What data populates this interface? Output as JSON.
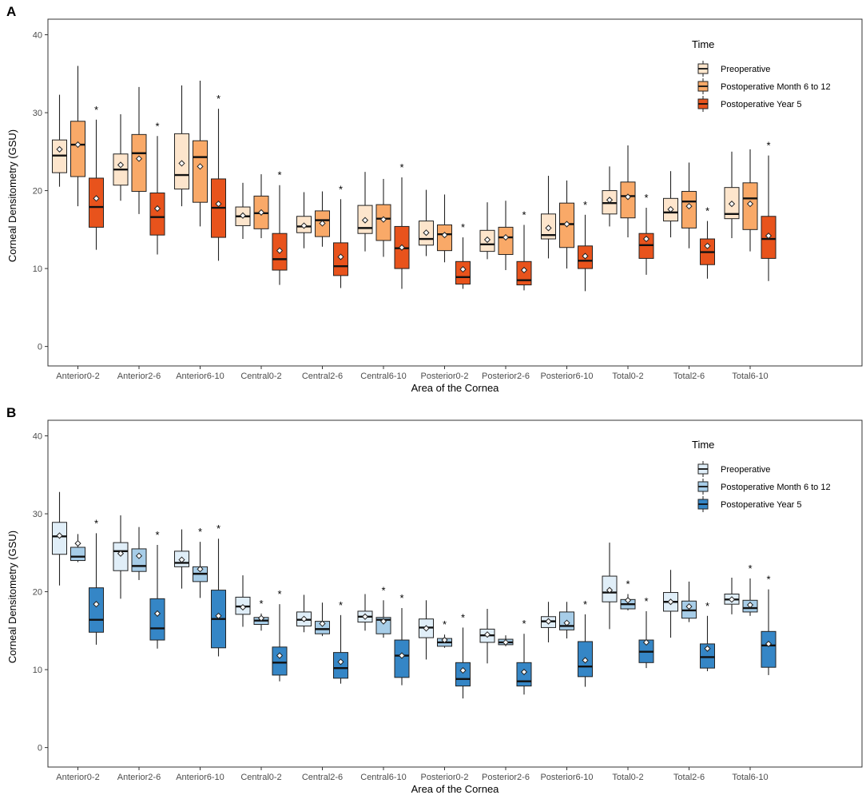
{
  "chart_data": [
    {
      "type": "boxplot",
      "panel_label": "A",
      "xlabel": "Area of the Cornea",
      "ylabel": "Corneal Densitometry (GSU)",
      "ylim": [
        -2.5,
        42
      ],
      "yticks": [
        0,
        10,
        20,
        30,
        40
      ],
      "grid": false,
      "categories": [
        "Anterior0-2",
        "Anterior2-6",
        "Anterior6-10",
        "Central0-2",
        "Central2-6",
        "Central6-10",
        "Posterior0-2",
        "Posterior2-6",
        "Posterior6-10",
        "Total0-2",
        "Total2-6",
        "Total6-10"
      ],
      "legend": {
        "title": "Time",
        "position": "top-right"
      },
      "significance_marker": "*",
      "series": [
        {
          "name": "Preoperative",
          "color": "#fde5cc",
          "boxes": [
            {
              "min": 20.5,
              "q1": 22.3,
              "median": 24.5,
              "q3": 26.5,
              "max": 32.3,
              "mean": 25.3
            },
            {
              "min": 18.7,
              "q1": 20.7,
              "median": 22.7,
              "q3": 24.7,
              "max": 29.8,
              "mean": 23.3
            },
            {
              "min": 18.0,
              "q1": 20.2,
              "median": 22.0,
              "q3": 27.3,
              "max": 33.5,
              "mean": 23.5
            },
            {
              "min": 13.8,
              "q1": 15.5,
              "median": 16.7,
              "q3": 17.9,
              "max": 21.0,
              "mean": 16.8
            },
            {
              "min": 12.6,
              "q1": 14.6,
              "median": 15.4,
              "q3": 16.7,
              "max": 19.8,
              "mean": 15.5
            },
            {
              "min": 12.2,
              "q1": 14.5,
              "median": 15.2,
              "q3": 18.1,
              "max": 22.4,
              "mean": 16.2
            },
            {
              "min": 11.6,
              "q1": 13.0,
              "median": 13.8,
              "q3": 16.1,
              "max": 20.1,
              "mean": 14.6
            },
            {
              "min": 11.2,
              "q1": 12.2,
              "median": 13.1,
              "q3": 14.9,
              "max": 18.5,
              "mean": 13.7
            },
            {
              "min": 11.3,
              "q1": 13.8,
              "median": 14.3,
              "q3": 17.0,
              "max": 21.9,
              "mean": 15.2
            },
            {
              "min": 15.4,
              "q1": 17.0,
              "median": 18.4,
              "q3": 20.0,
              "max": 23.1,
              "mean": 18.8
            },
            {
              "min": 14.0,
              "q1": 16.1,
              "median": 17.2,
              "q3": 19.0,
              "max": 22.5,
              "mean": 17.6
            },
            {
              "min": 13.9,
              "q1": 16.4,
              "median": 17.0,
              "q3": 20.4,
              "max": 25.0,
              "mean": 18.3
            }
          ]
        },
        {
          "name": "Postoperative Month 6 to 12",
          "color": "#f9a968",
          "boxes": [
            {
              "min": 18.0,
              "q1": 21.8,
              "median": 25.9,
              "q3": 28.9,
              "max": 36.0,
              "mean": 25.9
            },
            {
              "min": 17.0,
              "q1": 19.9,
              "median": 24.8,
              "q3": 27.2,
              "max": 33.3,
              "mean": 24.1
            },
            {
              "min": 15.4,
              "q1": 18.5,
              "median": 24.3,
              "q3": 26.4,
              "max": 34.1,
              "mean": 23.1
            },
            {
              "min": 13.9,
              "q1": 15.1,
              "median": 17.1,
              "q3": 19.3,
              "max": 22.1,
              "mean": 17.2
            },
            {
              "min": 12.8,
              "q1": 14.1,
              "median": 16.2,
              "q3": 17.4,
              "max": 19.9,
              "mean": 15.8
            },
            {
              "min": 11.5,
              "q1": 13.6,
              "median": 16.4,
              "q3": 18.2,
              "max": 21.5,
              "mean": 16.3
            },
            {
              "min": 10.8,
              "q1": 12.3,
              "median": 14.4,
              "q3": 15.6,
              "max": 19.5,
              "mean": 14.3
            },
            {
              "min": 9.8,
              "q1": 11.8,
              "median": 14.0,
              "q3": 15.3,
              "max": 18.7,
              "mean": 14.0
            },
            {
              "min": 10.0,
              "q1": 12.7,
              "median": 15.7,
              "q3": 18.4,
              "max": 21.3,
              "mean": 15.7
            },
            {
              "min": 14.0,
              "q1": 16.5,
              "median": 19.3,
              "q3": 21.1,
              "max": 25.8,
              "mean": 19.2
            },
            {
              "min": 12.6,
              "q1": 15.2,
              "median": 18.6,
              "q3": 19.9,
              "max": 23.6,
              "mean": 18.0
            },
            {
              "min": 12.2,
              "q1": 15.0,
              "median": 19.0,
              "q3": 21.0,
              "max": 25.3,
              "mean": 18.3
            }
          ]
        },
        {
          "name": "Postoperative Year 5",
          "color": "#e8531c",
          "boxes": [
            {
              "min": 12.4,
              "q1": 15.3,
              "median": 17.9,
              "q3": 21.6,
              "max": 29.1,
              "mean": 19.0
            },
            {
              "min": 11.8,
              "q1": 14.3,
              "median": 16.6,
              "q3": 19.7,
              "max": 27.0,
              "mean": 17.7
            },
            {
              "min": 11.0,
              "q1": 14.0,
              "median": 17.8,
              "q3": 21.5,
              "max": 30.5,
              "mean": 18.3
            },
            {
              "min": 7.9,
              "q1": 9.8,
              "median": 11.2,
              "q3": 14.5,
              "max": 20.7,
              "mean": 12.3
            },
            {
              "min": 7.5,
              "q1": 9.1,
              "median": 10.3,
              "q3": 13.3,
              "max": 18.9,
              "mean": 11.5
            },
            {
              "min": 7.4,
              "q1": 10.0,
              "median": 12.6,
              "q3": 15.4,
              "max": 21.7,
              "mean": 12.7
            },
            {
              "min": 7.4,
              "q1": 8.0,
              "median": 8.9,
              "q3": 10.9,
              "max": 14.0,
              "mean": 9.9
            },
            {
              "min": 7.2,
              "q1": 7.9,
              "median": 8.5,
              "q3": 10.9,
              "max": 15.6,
              "mean": 9.8
            },
            {
              "min": 7.1,
              "q1": 10.0,
              "median": 11.0,
              "q3": 12.9,
              "max": 16.9,
              "mean": 11.6
            },
            {
              "min": 9.2,
              "q1": 11.3,
              "median": 13.0,
              "q3": 14.5,
              "max": 17.8,
              "mean": 13.8
            },
            {
              "min": 8.7,
              "q1": 10.5,
              "median": 12.1,
              "q3": 13.8,
              "max": 16.1,
              "mean": 12.9
            },
            {
              "min": 8.4,
              "q1": 11.3,
              "median": 13.8,
              "q3": 16.7,
              "max": 24.5,
              "mean": 14.2
            }
          ]
        }
      ],
      "significance": [
        [
          false,
          false,
          true
        ],
        [
          false,
          false,
          true
        ],
        [
          false,
          false,
          true
        ],
        [
          false,
          false,
          true
        ],
        [
          false,
          false,
          true
        ],
        [
          false,
          false,
          true
        ],
        [
          false,
          false,
          true
        ],
        [
          false,
          false,
          true
        ],
        [
          false,
          false,
          true
        ],
        [
          false,
          false,
          true
        ],
        [
          false,
          false,
          true
        ],
        [
          false,
          false,
          true
        ]
      ]
    },
    {
      "type": "boxplot",
      "panel_label": "B",
      "xlabel": "Area of the Cornea",
      "ylabel": "Corneal Densitometry (GSU)",
      "ylim": [
        -2.5,
        42
      ],
      "yticks": [
        0,
        10,
        20,
        30,
        40
      ],
      "grid": false,
      "categories": [
        "Anterior0-2",
        "Anterior2-6",
        "Anterior6-10",
        "Central0-2",
        "Central2-6",
        "Central6-10",
        "Posterior0-2",
        "Posterior2-6",
        "Posterior6-10",
        "Total0-2",
        "Total2-6",
        "Total6-10"
      ],
      "legend": {
        "title": "Time",
        "position": "top-right"
      },
      "significance_marker": "*",
      "series": [
        {
          "name": "Preoperative",
          "color": "#e0eef8",
          "boxes": [
            {
              "min": 20.8,
              "q1": 24.8,
              "median": 27.1,
              "q3": 28.9,
              "max": 32.8,
              "mean": 27.2
            },
            {
              "min": 19.1,
              "q1": 22.7,
              "median": 25.2,
              "q3": 26.3,
              "max": 29.8,
              "mean": 24.9
            },
            {
              "min": 20.4,
              "q1": 23.2,
              "median": 23.7,
              "q3": 25.2,
              "max": 28.0,
              "mean": 24.1
            },
            {
              "min": 15.5,
              "q1": 17.1,
              "median": 18.1,
              "q3": 19.3,
              "max": 22.1,
              "mean": 18.0
            },
            {
              "min": 14.8,
              "q1": 15.6,
              "median": 16.4,
              "q3": 17.4,
              "max": 19.6,
              "mean": 16.5
            },
            {
              "min": 15.0,
              "q1": 16.1,
              "median": 16.8,
              "q3": 17.5,
              "max": 19.7,
              "mean": 16.8
            },
            {
              "min": 11.3,
              "q1": 14.1,
              "median": 15.4,
              "q3": 16.5,
              "max": 18.9,
              "mean": 15.3
            },
            {
              "min": 10.8,
              "q1": 13.5,
              "median": 14.4,
              "q3": 15.2,
              "max": 17.8,
              "mean": 14.5
            },
            {
              "min": 13.5,
              "q1": 15.4,
              "median": 16.2,
              "q3": 16.8,
              "max": 18.7,
              "mean": 16.2
            },
            {
              "min": 15.2,
              "q1": 18.7,
              "median": 19.9,
              "q3": 22.0,
              "max": 26.3,
              "mean": 20.2
            },
            {
              "min": 14.1,
              "q1": 17.5,
              "median": 18.7,
              "q3": 19.9,
              "max": 22.8,
              "mean": 18.7
            },
            {
              "min": 17.1,
              "q1": 18.4,
              "median": 19.0,
              "q3": 19.7,
              "max": 21.8,
              "mean": 19.0
            }
          ]
        },
        {
          "name": "Postoperative Month 6 to 12",
          "color": "#a7cde8",
          "boxes": [
            {
              "min": 23.8,
              "q1": 24.0,
              "median": 24.5,
              "q3": 25.7,
              "max": 27.4,
              "mean": 26.2
            },
            {
              "min": 21.5,
              "q1": 22.6,
              "median": 23.3,
              "q3": 25.5,
              "max": 28.3,
              "mean": 24.6
            },
            {
              "min": 19.2,
              "q1": 21.3,
              "median": 22.3,
              "q3": 23.2,
              "max": 26.4,
              "mean": 22.9
            },
            {
              "min": 15.0,
              "q1": 15.8,
              "median": 16.3,
              "q3": 16.7,
              "max": 17.2,
              "mean": 16.6
            },
            {
              "min": 14.3,
              "q1": 14.6,
              "median": 15.2,
              "q3": 16.2,
              "max": 18.6,
              "mean": 15.9
            },
            {
              "min": 14.1,
              "q1": 14.6,
              "median": 16.4,
              "q3": 16.7,
              "max": 18.9,
              "mean": 16.2
            },
            {
              "min": 12.8,
              "q1": 13.0,
              "median": 13.5,
              "q3": 14.0,
              "max": 14.5,
              "mean": 13.8
            },
            {
              "min": 13.0,
              "q1": 13.2,
              "median": 13.5,
              "q3": 13.9,
              "max": 14.4,
              "mean": 13.5
            },
            {
              "min": 14.0,
              "q1": 15.1,
              "median": 15.6,
              "q3": 17.4,
              "max": 18.7,
              "mean": 16.0
            },
            {
              "min": 17.6,
              "q1": 17.8,
              "median": 18.4,
              "q3": 19.0,
              "max": 19.7,
              "mean": 18.9
            },
            {
              "min": 16.1,
              "q1": 16.6,
              "median": 17.6,
              "q3": 18.8,
              "max": 21.3,
              "mean": 18.1
            },
            {
              "min": 16.9,
              "q1": 17.4,
              "median": 17.9,
              "q3": 18.9,
              "max": 21.7,
              "mean": 18.3
            }
          ]
        },
        {
          "name": "Postoperative Year 5",
          "color": "#3586c6",
          "boxes": [
            {
              "min": 13.2,
              "q1": 14.8,
              "median": 16.4,
              "q3": 20.5,
              "max": 27.5,
              "mean": 18.4
            },
            {
              "min": 12.7,
              "q1": 13.8,
              "median": 15.3,
              "q3": 19.1,
              "max": 26.0,
              "mean": 17.2
            },
            {
              "min": 11.7,
              "q1": 12.8,
              "median": 16.5,
              "q3": 20.2,
              "max": 26.8,
              "mean": 16.9
            },
            {
              "min": 8.5,
              "q1": 9.3,
              "median": 10.9,
              "q3": 12.9,
              "max": 18.4,
              "mean": 11.8
            },
            {
              "min": 8.2,
              "q1": 8.9,
              "median": 10.2,
              "q3": 12.2,
              "max": 17.0,
              "mean": 11.0
            },
            {
              "min": 8.0,
              "q1": 9.0,
              "median": 11.8,
              "q3": 13.8,
              "max": 17.9,
              "mean": 11.8
            },
            {
              "min": 6.3,
              "q1": 7.9,
              "median": 8.8,
              "q3": 10.9,
              "max": 15.4,
              "mean": 9.9
            },
            {
              "min": 6.8,
              "q1": 7.9,
              "median": 8.5,
              "q3": 10.9,
              "max": 14.6,
              "mean": 9.7
            },
            {
              "min": 7.8,
              "q1": 9.1,
              "median": 10.4,
              "q3": 13.6,
              "max": 17.1,
              "mean": 11.2
            },
            {
              "min": 10.2,
              "q1": 10.9,
              "median": 12.3,
              "q3": 13.8,
              "max": 17.5,
              "mean": 13.5
            },
            {
              "min": 9.8,
              "q1": 10.2,
              "median": 11.6,
              "q3": 13.3,
              "max": 16.9,
              "mean": 12.7
            },
            {
              "min": 9.3,
              "q1": 10.3,
              "median": 13.1,
              "q3": 14.9,
              "max": 20.3,
              "mean": 13.3
            }
          ]
        }
      ],
      "significance": [
        [
          false,
          false,
          true
        ],
        [
          false,
          false,
          true
        ],
        [
          false,
          true,
          true
        ],
        [
          false,
          true,
          true
        ],
        [
          false,
          false,
          true
        ],
        [
          false,
          true,
          true
        ],
        [
          false,
          true,
          true
        ],
        [
          false,
          false,
          true
        ],
        [
          false,
          false,
          true
        ],
        [
          false,
          true,
          true
        ],
        [
          false,
          false,
          true
        ],
        [
          false,
          true,
          true
        ]
      ]
    }
  ]
}
